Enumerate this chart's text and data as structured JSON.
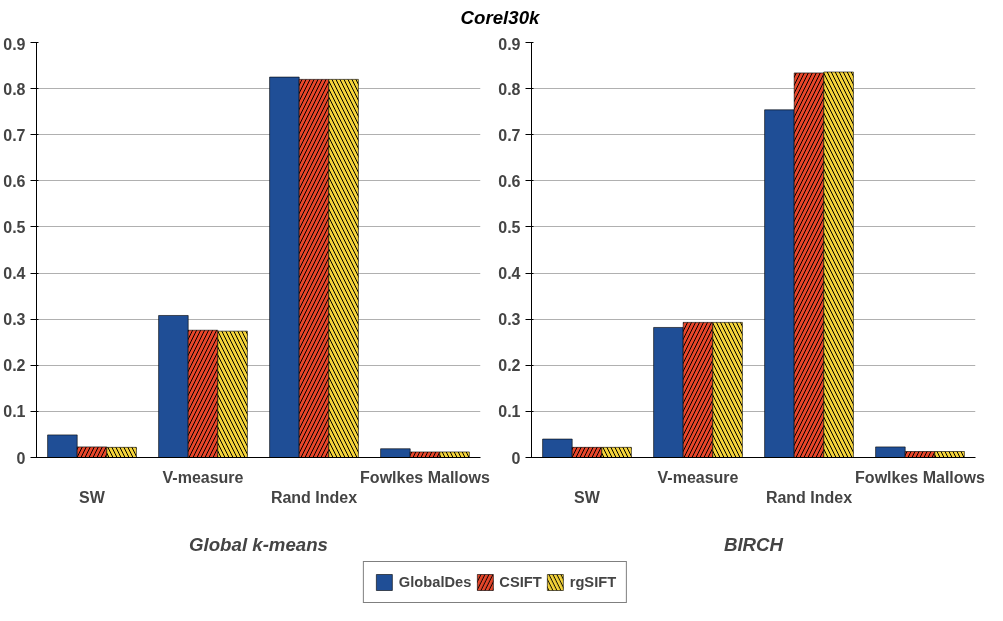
{
  "chart_data": [
    {
      "type": "bar",
      "title": "Corel30k",
      "xlabel": "Global k-means",
      "categories": [
        "SW",
        "V-measure",
        "Rand Index",
        "Fowlkes Mallows"
      ],
      "series": [
        {
          "name": "GlobalDes",
          "color": "#1f4e96",
          "values": [
            0.049,
            0.308,
            0.825,
            0.019
          ]
        },
        {
          "name": "CSIFT",
          "color": "#e8462a",
          "values": [
            0.023,
            0.276,
            0.82,
            0.012
          ]
        },
        {
          "name": "rgSIFT",
          "color": "#f5d43a",
          "values": [
            0.022,
            0.274,
            0.82,
            0.012
          ]
        }
      ],
      "ylim": [
        0,
        0.9
      ],
      "yticks": [
        0,
        0.1,
        0.2,
        0.3,
        0.4,
        0.5,
        0.6,
        0.7,
        0.8,
        0.9
      ],
      "grid": "y",
      "legend": "bottom"
    },
    {
      "type": "bar",
      "xlabel": "BIRCH",
      "categories": [
        "SW",
        "V-measure",
        "Rand Index",
        "Fowlkes Mallows"
      ],
      "series": [
        {
          "color": "#1f4e96",
          "values": [
            0.04,
            0.282,
            0.754,
            0.023
          ]
        },
        {
          "color": "#e8462a",
          "values": [
            0.022,
            0.293,
            0.834,
            0.013
          ]
        },
        {
          "color": "#f5d43a",
          "values": [
            0.022,
            0.293,
            0.836,
            0.013
          ]
        }
      ],
      "ylim": [
        0,
        0.9
      ],
      "yticks": [
        0,
        0.1,
        0.2,
        0.3,
        0.4,
        0.5,
        0.6,
        0.7,
        0.8,
        0.9
      ],
      "grid": "y"
    }
  ]
}
